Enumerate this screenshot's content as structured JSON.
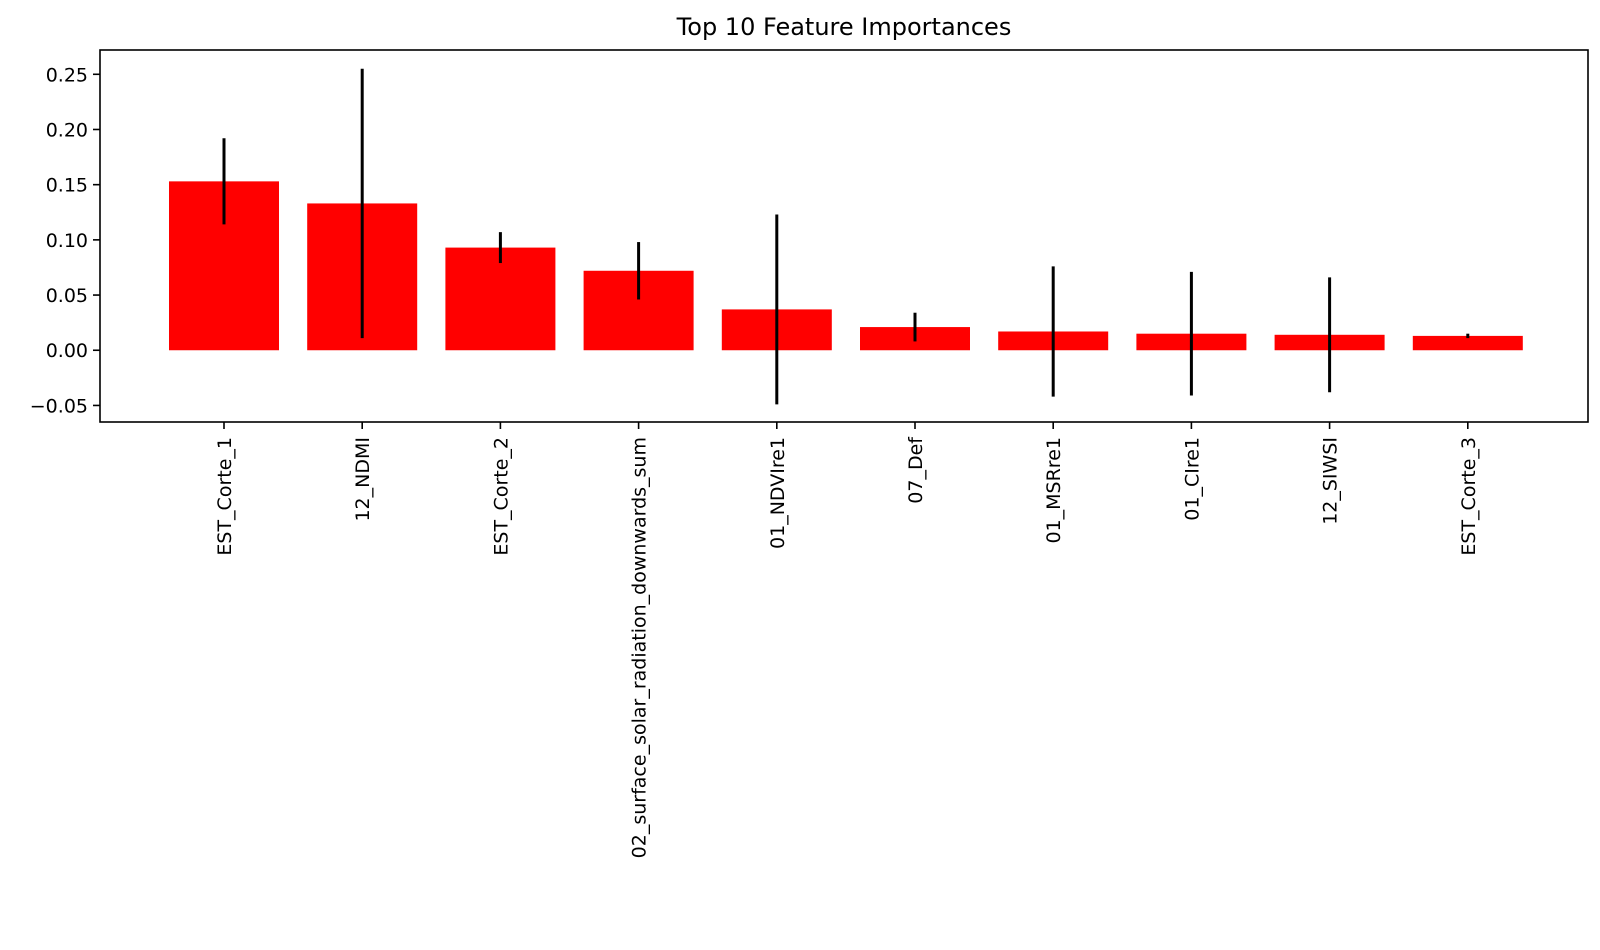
{
  "chart_data": {
    "type": "bar",
    "title": "Top 10 Feature Importances",
    "xlabel": "",
    "ylabel": "",
    "categories": [
      "EST_Corte_1",
      "12_NDMI",
      "EST_Corte_2",
      "02_surface_solar_radiation_downwards_sum",
      "01_NDVIre1",
      "07_Def",
      "01_MSRre1",
      "01_CIre1",
      "12_SIWSI",
      "EST_Corte_3"
    ],
    "values": [
      0.153,
      0.133,
      0.093,
      0.072,
      0.037,
      0.021,
      0.017,
      0.015,
      0.014,
      0.013
    ],
    "errors": [
      0.039,
      0.122,
      0.014,
      0.026,
      0.086,
      0.013,
      0.059,
      0.056,
      0.052,
      0.002
    ],
    "ylim": [
      -0.065,
      0.272
    ],
    "yticks": [
      -0.05,
      0.0,
      0.05,
      0.1,
      0.15,
      0.2,
      0.25
    ],
    "ytick_labels": [
      "−0.05",
      "0.00",
      "0.05",
      "0.10",
      "0.15",
      "0.20",
      "0.25"
    ],
    "bar_color": "#ff0000",
    "error_color": "#000000",
    "grid": false,
    "legend": "none"
  }
}
